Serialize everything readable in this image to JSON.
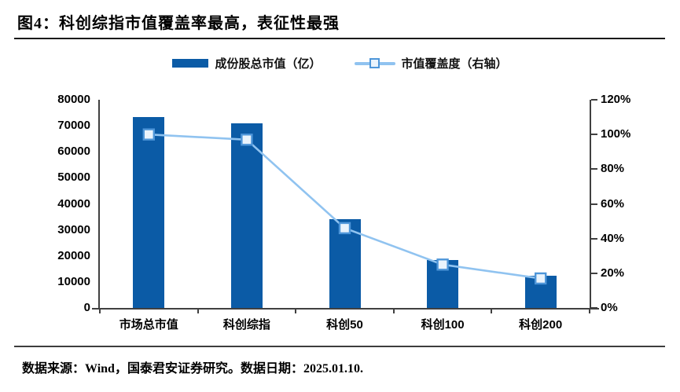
{
  "figure": {
    "title": "图4：科创综指市值覆盖率最高，表征性最强",
    "source_note": "数据来源：Wind，国泰君安证券研究。数据日期：2025.01.10."
  },
  "legend": [
    {
      "label": "成份股总市值（亿）",
      "type": "bar"
    },
    {
      "label": "市值覆盖度（右轴）",
      "type": "line-marker"
    }
  ],
  "chart_data": {
    "type": "bar",
    "subtype": "bar+line combo, line on secondary axis",
    "categories": [
      "市场总市值",
      "科创综指",
      "科创50",
      "科创100",
      "科创200"
    ],
    "series": [
      {
        "name": "成份股总市值（亿）",
        "type": "bar",
        "axis": "left",
        "values": [
          73500,
          71000,
          34000,
          18500,
          12500
        ]
      },
      {
        "name": "市值覆盖度（右轴）",
        "type": "line",
        "axis": "right",
        "values_pct": [
          100,
          97,
          46,
          25,
          17
        ]
      }
    ],
    "left_axis": {
      "min": 0,
      "max": 80000,
      "step": 10000,
      "tick_labels": [
        "0",
        "10000",
        "20000",
        "30000",
        "40000",
        "50000",
        "60000",
        "70000",
        "80000"
      ]
    },
    "right_axis": {
      "min": 0,
      "max": 120,
      "step": 20,
      "tick_labels": [
        "0%",
        "20%",
        "40%",
        "60%",
        "80%",
        "100%",
        "120%"
      ]
    },
    "grid": false,
    "legend_position": "top"
  },
  "colors": {
    "bar": "#0B5BA6",
    "line": "#90C3F0",
    "marker_border": "#4E96D9",
    "marker_fill": "#E9F3FC",
    "axis": "#404040",
    "text": "#000000"
  }
}
